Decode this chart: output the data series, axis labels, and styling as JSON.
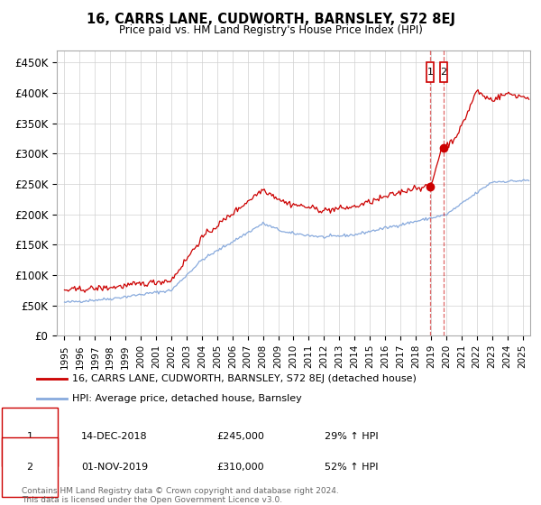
{
  "title": "16, CARRS LANE, CUDWORTH, BARNSLEY, S72 8EJ",
  "subtitle": "Price paid vs. HM Land Registry's House Price Index (HPI)",
  "ylim": [
    0,
    470000
  ],
  "xlim_start": 1994.5,
  "xlim_end": 2025.5,
  "yticks": [
    0,
    50000,
    100000,
    150000,
    200000,
    250000,
    300000,
    350000,
    400000,
    450000
  ],
  "ytick_labels": [
    "£0",
    "£50K",
    "£100K",
    "£150K",
    "£200K",
    "£250K",
    "£300K",
    "£350K",
    "£400K",
    "£450K"
  ],
  "background_color": "#ffffff",
  "grid_color": "#d0d0d0",
  "line1_color": "#cc0000",
  "line2_color": "#88aadd",
  "transaction1_year": 2018.958,
  "transaction2_year": 2019.833,
  "transaction1_price": 245000,
  "transaction2_price": 310000,
  "transaction1_label": "1",
  "transaction2_label": "2",
  "transaction1_text": "14-DEC-2018",
  "transaction2_text": "01-NOV-2019",
  "transaction1_pct": "29% ↑ HPI",
  "transaction2_pct": "52% ↑ HPI",
  "legend_label1": "16, CARRS LANE, CUDWORTH, BARNSLEY, S72 8EJ (detached house)",
  "legend_label2": "HPI: Average price, detached house, Barnsley",
  "footer1": "Contains HM Land Registry data © Crown copyright and database right 2024.",
  "footer2": "This data is licensed under the Open Government Licence v3.0."
}
